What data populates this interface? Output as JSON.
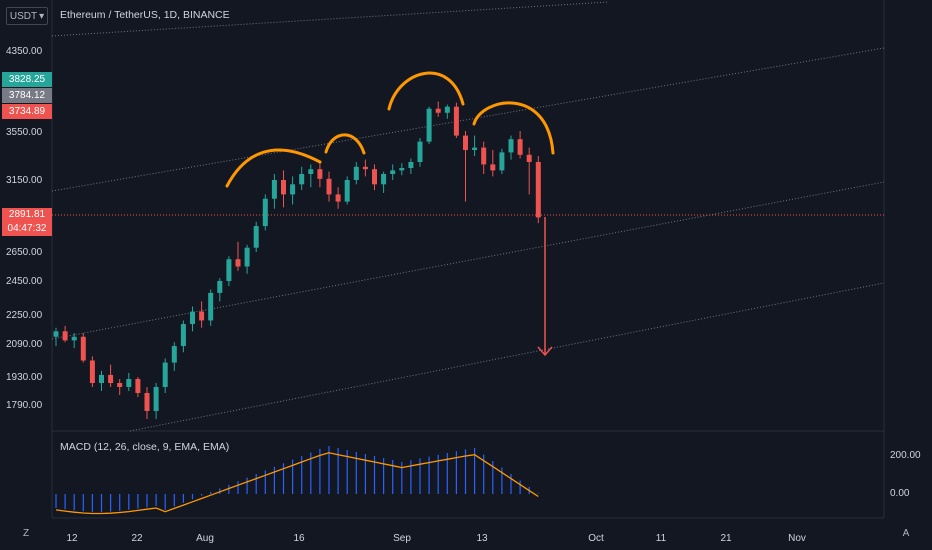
{
  "header": {
    "title": "Ethereum / TetherUS, 1D, BINANCE",
    "currency": "USDT",
    "currency_arrow": "▾"
  },
  "price_tags": [
    {
      "value": "3828.25",
      "color": "#26a69a"
    },
    {
      "value": "3784.12",
      "color": "#787b86"
    },
    {
      "value": "3734.89",
      "color": "#ef5350"
    }
  ],
  "current_price": {
    "value": "2891.81",
    "countdown": "04:47:32",
    "color": "#ef5350"
  },
  "macd": {
    "title": "MACD (12, 26, close, 9, EMA, EMA)",
    "axis_labels": [
      "200.00",
      "0.00"
    ],
    "histogram_color": "#2962ff",
    "signal_color": "#ff9800"
  },
  "bottom_buttons": {
    "left": "Z",
    "right": "A"
  },
  "chart_data": {
    "type": "candlestick",
    "symbol": "ETHUSDT",
    "interval": "1D",
    "y_ticks": [
      1790,
      1930,
      2090,
      2250,
      2450,
      2650,
      3150,
      3550,
      4350
    ],
    "y_tick_labels": [
      "1790.00",
      "1930.00",
      "2090.00",
      "2250.00",
      "2450.00",
      "2650.00",
      "3150.00",
      "3550.00",
      "4350.00"
    ],
    "x_tick_labels": [
      "12",
      "22",
      "Aug",
      "16",
      "Sep",
      "13",
      "Oct",
      "11",
      "21",
      "Nov"
    ],
    "up_color": "#26a69a",
    "down_color": "#ef5350",
    "candles": [
      [
        2130,
        2180,
        2080,
        2160
      ],
      [
        2160,
        2190,
        2100,
        2110
      ],
      [
        2110,
        2150,
        2070,
        2130
      ],
      [
        2130,
        2150,
        2000,
        2010
      ],
      [
        2010,
        2030,
        1880,
        1900
      ],
      [
        1900,
        1960,
        1860,
        1940
      ],
      [
        1940,
        1990,
        1880,
        1900
      ],
      [
        1900,
        1920,
        1840,
        1880
      ],
      [
        1880,
        1950,
        1860,
        1920
      ],
      [
        1920,
        1930,
        1830,
        1850
      ],
      [
        1850,
        1880,
        1720,
        1760
      ],
      [
        1760,
        1900,
        1720,
        1880
      ],
      [
        1880,
        2020,
        1850,
        2000
      ],
      [
        2000,
        2100,
        1960,
        2080
      ],
      [
        2080,
        2220,
        2050,
        2200
      ],
      [
        2200,
        2300,
        2160,
        2270
      ],
      [
        2270,
        2330,
        2180,
        2220
      ],
      [
        2220,
        2400,
        2190,
        2380
      ],
      [
        2380,
        2470,
        2330,
        2450
      ],
      [
        2450,
        2620,
        2420,
        2600
      ],
      [
        2600,
        2720,
        2520,
        2550
      ],
      [
        2550,
        2700,
        2500,
        2680
      ],
      [
        2680,
        2860,
        2650,
        2830
      ],
      [
        2830,
        3050,
        2800,
        3020
      ],
      [
        3020,
        3200,
        2950,
        3150
      ],
      [
        3150,
        3230,
        2960,
        3050
      ],
      [
        3050,
        3180,
        2980,
        3120
      ],
      [
        3120,
        3260,
        3080,
        3200
      ],
      [
        3200,
        3280,
        3100,
        3240
      ],
      [
        3240,
        3300,
        3100,
        3160
      ],
      [
        3160,
        3220,
        3000,
        3050
      ],
      [
        3050,
        3100,
        2950,
        3000
      ],
      [
        3000,
        3180,
        2980,
        3150
      ],
      [
        3150,
        3300,
        3120,
        3260
      ],
      [
        3260,
        3320,
        3180,
        3240
      ],
      [
        3240,
        3280,
        3080,
        3120
      ],
      [
        3120,
        3220,
        3060,
        3200
      ],
      [
        3200,
        3280,
        3150,
        3230
      ],
      [
        3230,
        3290,
        3190,
        3250
      ],
      [
        3250,
        3330,
        3200,
        3300
      ],
      [
        3300,
        3500,
        3260,
        3470
      ],
      [
        3470,
        3800,
        3450,
        3780
      ],
      [
        3780,
        3850,
        3700,
        3740
      ],
      [
        3740,
        3820,
        3680,
        3800
      ],
      [
        3800,
        3840,
        3500,
        3520
      ],
      [
        3520,
        3560,
        3000,
        3400
      ],
      [
        3400,
        3520,
        3350,
        3420
      ],
      [
        3420,
        3470,
        3200,
        3280
      ],
      [
        3280,
        3400,
        3180,
        3230
      ],
      [
        3230,
        3410,
        3200,
        3380
      ],
      [
        3380,
        3520,
        3320,
        3490
      ],
      [
        3490,
        3560,
        3330,
        3360
      ],
      [
        3360,
        3420,
        3050,
        3300
      ],
      [
        3300,
        3350,
        2850,
        2890
      ]
    ]
  }
}
